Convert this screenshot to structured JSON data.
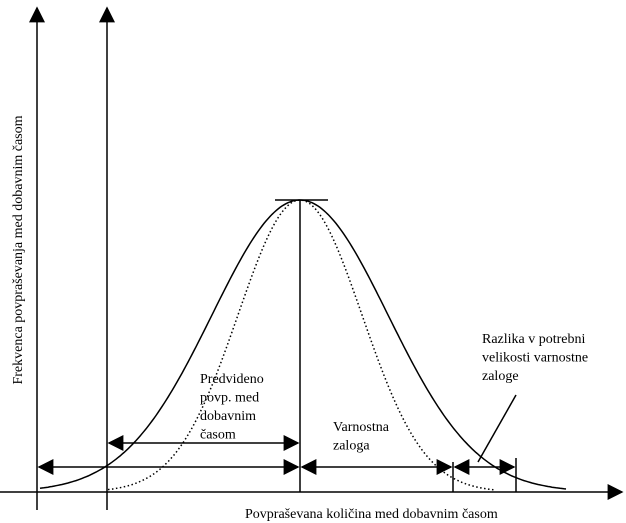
{
  "axes": {
    "y_label": "Frekvenca povpraševanja med dobavnim časom",
    "x_label": "Povpraševana količina med dobavnim časom"
  },
  "annotations": [
    {
      "lines": [
        "Predvideno",
        "povp. med",
        "dobavnim",
        "časom"
      ]
    },
    {
      "lines": [
        "Varnostna",
        "zaloga"
      ]
    },
    {
      "lines": [
        "Razlika v potrebni",
        "velikosti varnostne",
        "zaloge"
      ]
    }
  ]
}
